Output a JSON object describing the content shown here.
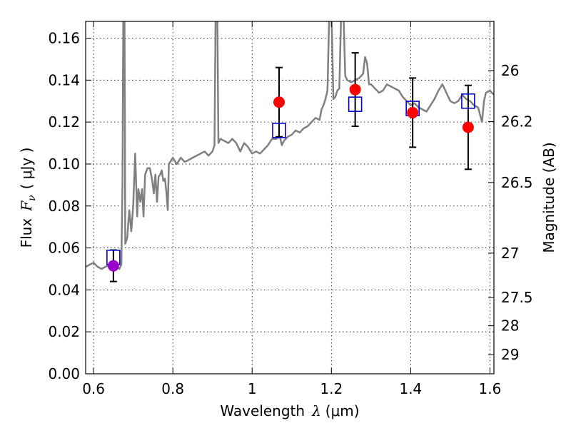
{
  "chart_data": {
    "type": "scatter",
    "xlabel": {
      "text": "Wavelength",
      "symbol": "λ",
      "unit": "(μm)"
    },
    "ylabel": {
      "text": "Flux",
      "symbol": "F",
      "sub": "ν",
      "unit": "( μJy )"
    },
    "y2label": "Magnitude (AB)",
    "xlim": [
      0.58,
      1.61
    ],
    "ylim": [
      0.0,
      0.168
    ],
    "grid": true,
    "x_ticks": [
      {
        "value": 0.6,
        "label": "0.6"
      },
      {
        "value": 0.8,
        "label": "0.8"
      },
      {
        "value": 1.0,
        "label": "1"
      },
      {
        "value": 1.2,
        "label": "1.2"
      },
      {
        "value": 1.4,
        "label": "1.4"
      },
      {
        "value": 1.6,
        "label": "1.6"
      }
    ],
    "y_ticks": [
      {
        "value": 0.0,
        "label": "0.00"
      },
      {
        "value": 0.02,
        "label": "0.02"
      },
      {
        "value": 0.04,
        "label": "0.04"
      },
      {
        "value": 0.06,
        "label": "0.06"
      },
      {
        "value": 0.08,
        "label": "0.08"
      },
      {
        "value": 0.1,
        "label": "0.10"
      },
      {
        "value": 0.12,
        "label": "0.12"
      },
      {
        "value": 0.14,
        "label": "0.14"
      },
      {
        "value": 0.16,
        "label": "0.16"
      }
    ],
    "y2_ticks": [
      {
        "value": 26,
        "label": "26"
      },
      {
        "value": 26.2,
        "label": "26.2"
      },
      {
        "value": 26.5,
        "label": "26.5"
      },
      {
        "value": 27,
        "label": "27"
      },
      {
        "value": 27.5,
        "label": "27.5"
      },
      {
        "value": 28,
        "label": "28"
      },
      {
        "value": 29,
        "label": "29"
      }
    ],
    "model_spectrum": {
      "color": "#808080",
      "points": [
        [
          0.58,
          0.051
        ],
        [
          0.59,
          0.052
        ],
        [
          0.6,
          0.053
        ],
        [
          0.61,
          0.051
        ],
        [
          0.62,
          0.05
        ],
        [
          0.63,
          0.051
        ],
        [
          0.64,
          0.052
        ],
        [
          0.65,
          0.052
        ],
        [
          0.66,
          0.051
        ],
        [
          0.665,
          0.05
        ],
        [
          0.67,
          0.052
        ],
        [
          0.673,
          0.09
        ],
        [
          0.675,
          0.175
        ],
        [
          0.678,
          0.175
        ],
        [
          0.68,
          0.062
        ],
        [
          0.685,
          0.065
        ],
        [
          0.69,
          0.078
        ],
        [
          0.695,
          0.068
        ],
        [
          0.7,
          0.08
        ],
        [
          0.705,
          0.105
        ],
        [
          0.71,
          0.075
        ],
        [
          0.713,
          0.088
        ],
        [
          0.718,
          0.082
        ],
        [
          0.722,
          0.088
        ],
        [
          0.726,
          0.075
        ],
        [
          0.73,
          0.095
        ],
        [
          0.736,
          0.098
        ],
        [
          0.742,
          0.098
        ],
        [
          0.748,
          0.092
        ],
        [
          0.752,
          0.086
        ],
        [
          0.756,
          0.095
        ],
        [
          0.76,
          0.082
        ],
        [
          0.764,
          0.094
        ],
        [
          0.768,
          0.095
        ],
        [
          0.772,
          0.097
        ],
        [
          0.776,
          0.092
        ],
        [
          0.78,
          0.093
        ],
        [
          0.784,
          0.086
        ],
        [
          0.787,
          0.078
        ],
        [
          0.79,
          0.1
        ],
        [
          0.8,
          0.103
        ],
        [
          0.81,
          0.1
        ],
        [
          0.82,
          0.103
        ],
        [
          0.83,
          0.101
        ],
        [
          0.84,
          0.102
        ],
        [
          0.85,
          0.103
        ],
        [
          0.86,
          0.104
        ],
        [
          0.87,
          0.105
        ],
        [
          0.88,
          0.106
        ],
        [
          0.89,
          0.104
        ],
        [
          0.9,
          0.106
        ],
        [
          0.905,
          0.109
        ],
        [
          0.908,
          0.175
        ],
        [
          0.912,
          0.175
        ],
        [
          0.915,
          0.11
        ],
        [
          0.92,
          0.112
        ],
        [
          0.93,
          0.111
        ],
        [
          0.94,
          0.11
        ],
        [
          0.95,
          0.112
        ],
        [
          0.96,
          0.11
        ],
        [
          0.97,
          0.106
        ],
        [
          0.98,
          0.11
        ],
        [
          0.99,
          0.108
        ],
        [
          1.0,
          0.105
        ],
        [
          1.01,
          0.106
        ],
        [
          1.02,
          0.105
        ],
        [
          1.03,
          0.107
        ],
        [
          1.04,
          0.109
        ],
        [
          1.05,
          0.112
        ],
        [
          1.06,
          0.112
        ],
        [
          1.07,
          0.113
        ],
        [
          1.075,
          0.109
        ],
        [
          1.08,
          0.111
        ],
        [
          1.09,
          0.113
        ],
        [
          1.1,
          0.114
        ],
        [
          1.11,
          0.116
        ],
        [
          1.12,
          0.115
        ],
        [
          1.13,
          0.117
        ],
        [
          1.14,
          0.118
        ],
        [
          1.15,
          0.12
        ],
        [
          1.16,
          0.122
        ],
        [
          1.17,
          0.121
        ],
        [
          1.175,
          0.126
        ],
        [
          1.18,
          0.128
        ],
        [
          1.185,
          0.131
        ],
        [
          1.19,
          0.135
        ],
        [
          1.195,
          0.175
        ],
        [
          1.2,
          0.175
        ],
        [
          1.205,
          0.131
        ],
        [
          1.21,
          0.132
        ],
        [
          1.215,
          0.135
        ],
        [
          1.22,
          0.136
        ],
        [
          1.225,
          0.175
        ],
        [
          1.23,
          0.175
        ],
        [
          1.235,
          0.142
        ],
        [
          1.24,
          0.14
        ],
        [
          1.25,
          0.139
        ],
        [
          1.26,
          0.14
        ],
        [
          1.27,
          0.141
        ],
        [
          1.28,
          0.143
        ],
        [
          1.285,
          0.151
        ],
        [
          1.29,
          0.148
        ],
        [
          1.295,
          0.138
        ],
        [
          1.3,
          0.138
        ],
        [
          1.31,
          0.136
        ],
        [
          1.32,
          0.134
        ],
        [
          1.33,
          0.135
        ],
        [
          1.34,
          0.138
        ],
        [
          1.35,
          0.137
        ],
        [
          1.36,
          0.136
        ],
        [
          1.37,
          0.135
        ],
        [
          1.38,
          0.132
        ],
        [
          1.39,
          0.13
        ],
        [
          1.4,
          0.128
        ],
        [
          1.41,
          0.129
        ],
        [
          1.42,
          0.127
        ],
        [
          1.43,
          0.126
        ],
        [
          1.44,
          0.125
        ],
        [
          1.45,
          0.128
        ],
        [
          1.46,
          0.131
        ],
        [
          1.47,
          0.135
        ],
        [
          1.48,
          0.138
        ],
        [
          1.49,
          0.134
        ],
        [
          1.5,
          0.13
        ],
        [
          1.51,
          0.129
        ],
        [
          1.52,
          0.13
        ],
        [
          1.53,
          0.133
        ],
        [
          1.54,
          0.131
        ],
        [
          1.55,
          0.13
        ],
        [
          1.56,
          0.128
        ],
        [
          1.57,
          0.127
        ],
        [
          1.58,
          0.12
        ],
        [
          1.585,
          0.13
        ],
        [
          1.59,
          0.134
        ],
        [
          1.6,
          0.135
        ],
        [
          1.61,
          0.133
        ]
      ]
    },
    "series": [
      {
        "marker": "open-square",
        "color": "#0000cc",
        "points": [
          {
            "x": 0.65,
            "y": 0.0555
          },
          {
            "x": 1.068,
            "y": 0.116
          },
          {
            "x": 1.26,
            "y": 0.1285
          },
          {
            "x": 1.405,
            "y": 0.1265
          },
          {
            "x": 1.545,
            "y": 0.13
          }
        ]
      },
      {
        "marker": "filled-circle",
        "color": "#ff0000",
        "points": [
          {
            "x": 0.65,
            "y": 0.0515,
            "err": 0.0075,
            "color": "#9900cc"
          },
          {
            "x": 1.068,
            "y": 0.1295,
            "err": 0.0165
          },
          {
            "x": 1.26,
            "y": 0.1355,
            "err": 0.0175
          },
          {
            "x": 1.405,
            "y": 0.1245,
            "err": 0.0165
          },
          {
            "x": 1.545,
            "y": 0.1175,
            "err": 0.02
          }
        ]
      }
    ]
  }
}
